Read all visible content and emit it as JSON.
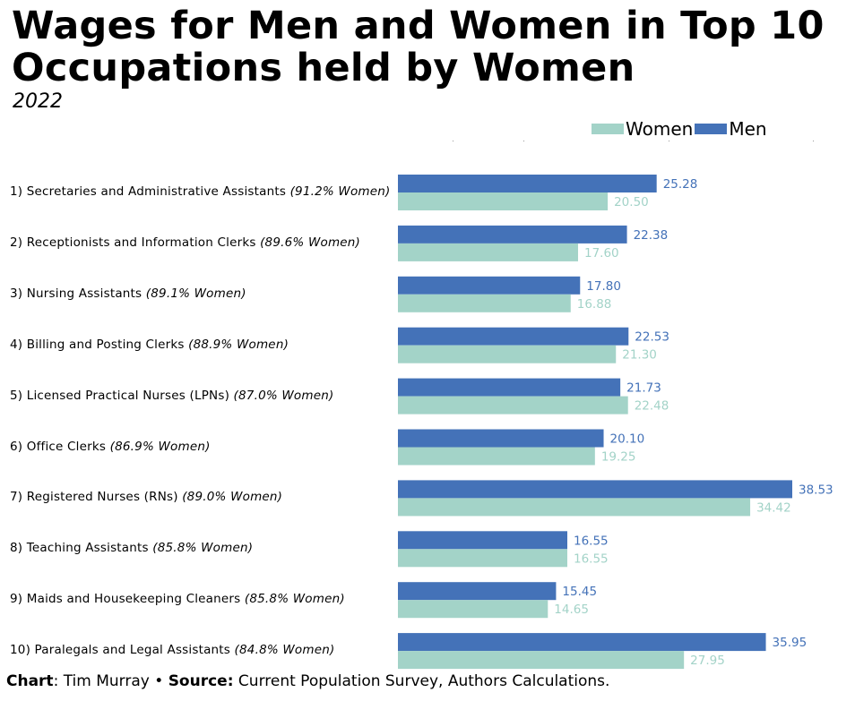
{
  "header": {
    "title": "Wages for Men and Women in Top 10 Occupations held by Women",
    "subtitle": "2022"
  },
  "legend": {
    "women_label": "Women",
    "men_label": "Men"
  },
  "colors": {
    "women": "#a3d3c8",
    "men": "#4472b8"
  },
  "footer": {
    "chart_label": "Chart",
    "chart_value": ": Tim Murray",
    "separator": " • ",
    "source_label": "Source:",
    "source_value": " Current Population Survey, Authors Calculations."
  },
  "chart_data": {
    "type": "bar",
    "orientation": "horizontal",
    "title": "Wages for Men and Women in Top 10 Occupations held by Women",
    "subtitle": "2022",
    "categories": [
      {
        "name": "1) Secretaries and Administrative Assistants",
        "share": "(91.2% Women)"
      },
      {
        "name": "2) Receptionists and Information Clerks",
        "share": "(89.6% Women)"
      },
      {
        "name": "3) Nursing Assistants",
        "share": "(89.1% Women)"
      },
      {
        "name": "4) Billing and Posting Clerks",
        "share": "(88.9% Women)"
      },
      {
        "name": "5) Licensed Practical Nurses (LPNs)",
        "share": "(87.0% Women)"
      },
      {
        "name": "6) Office Clerks",
        "share": "(86.9% Women)"
      },
      {
        "name": "7) Registered Nurses (RNs)",
        "share": "(89.0% Women)"
      },
      {
        "name": "8) Teaching Assistants",
        "share": "(85.8% Women)"
      },
      {
        "name": "9) Maids and Housekeeping Cleaners",
        "share": "(85.8% Women)"
      },
      {
        "name": "10) Paralegals and Legal Assistants",
        "share": "(84.8% Women)"
      }
    ],
    "series": [
      {
        "name": "Men",
        "values": [
          25.28,
          22.38,
          17.8,
          22.53,
          21.73,
          20.1,
          38.53,
          16.55,
          15.45,
          35.95
        ],
        "labels": [
          "25.28",
          "22.38",
          "17.80",
          "22.53",
          "21.73",
          "20.10",
          "38.53",
          "16.55",
          "15.45",
          "35.95"
        ]
      },
      {
        "name": "Women",
        "values": [
          20.5,
          17.6,
          16.88,
          21.3,
          22.48,
          19.25,
          34.42,
          16.55,
          14.65,
          27.95
        ],
        "labels": [
          "20.50",
          "17.60",
          "16.88",
          "21.30",
          "22.48",
          "19.25",
          "34.42",
          "16.55",
          "14.65",
          "27.95"
        ]
      }
    ],
    "xlim": [
      0,
      38.53
    ],
    "grid": false,
    "legend_position": "top-right"
  }
}
